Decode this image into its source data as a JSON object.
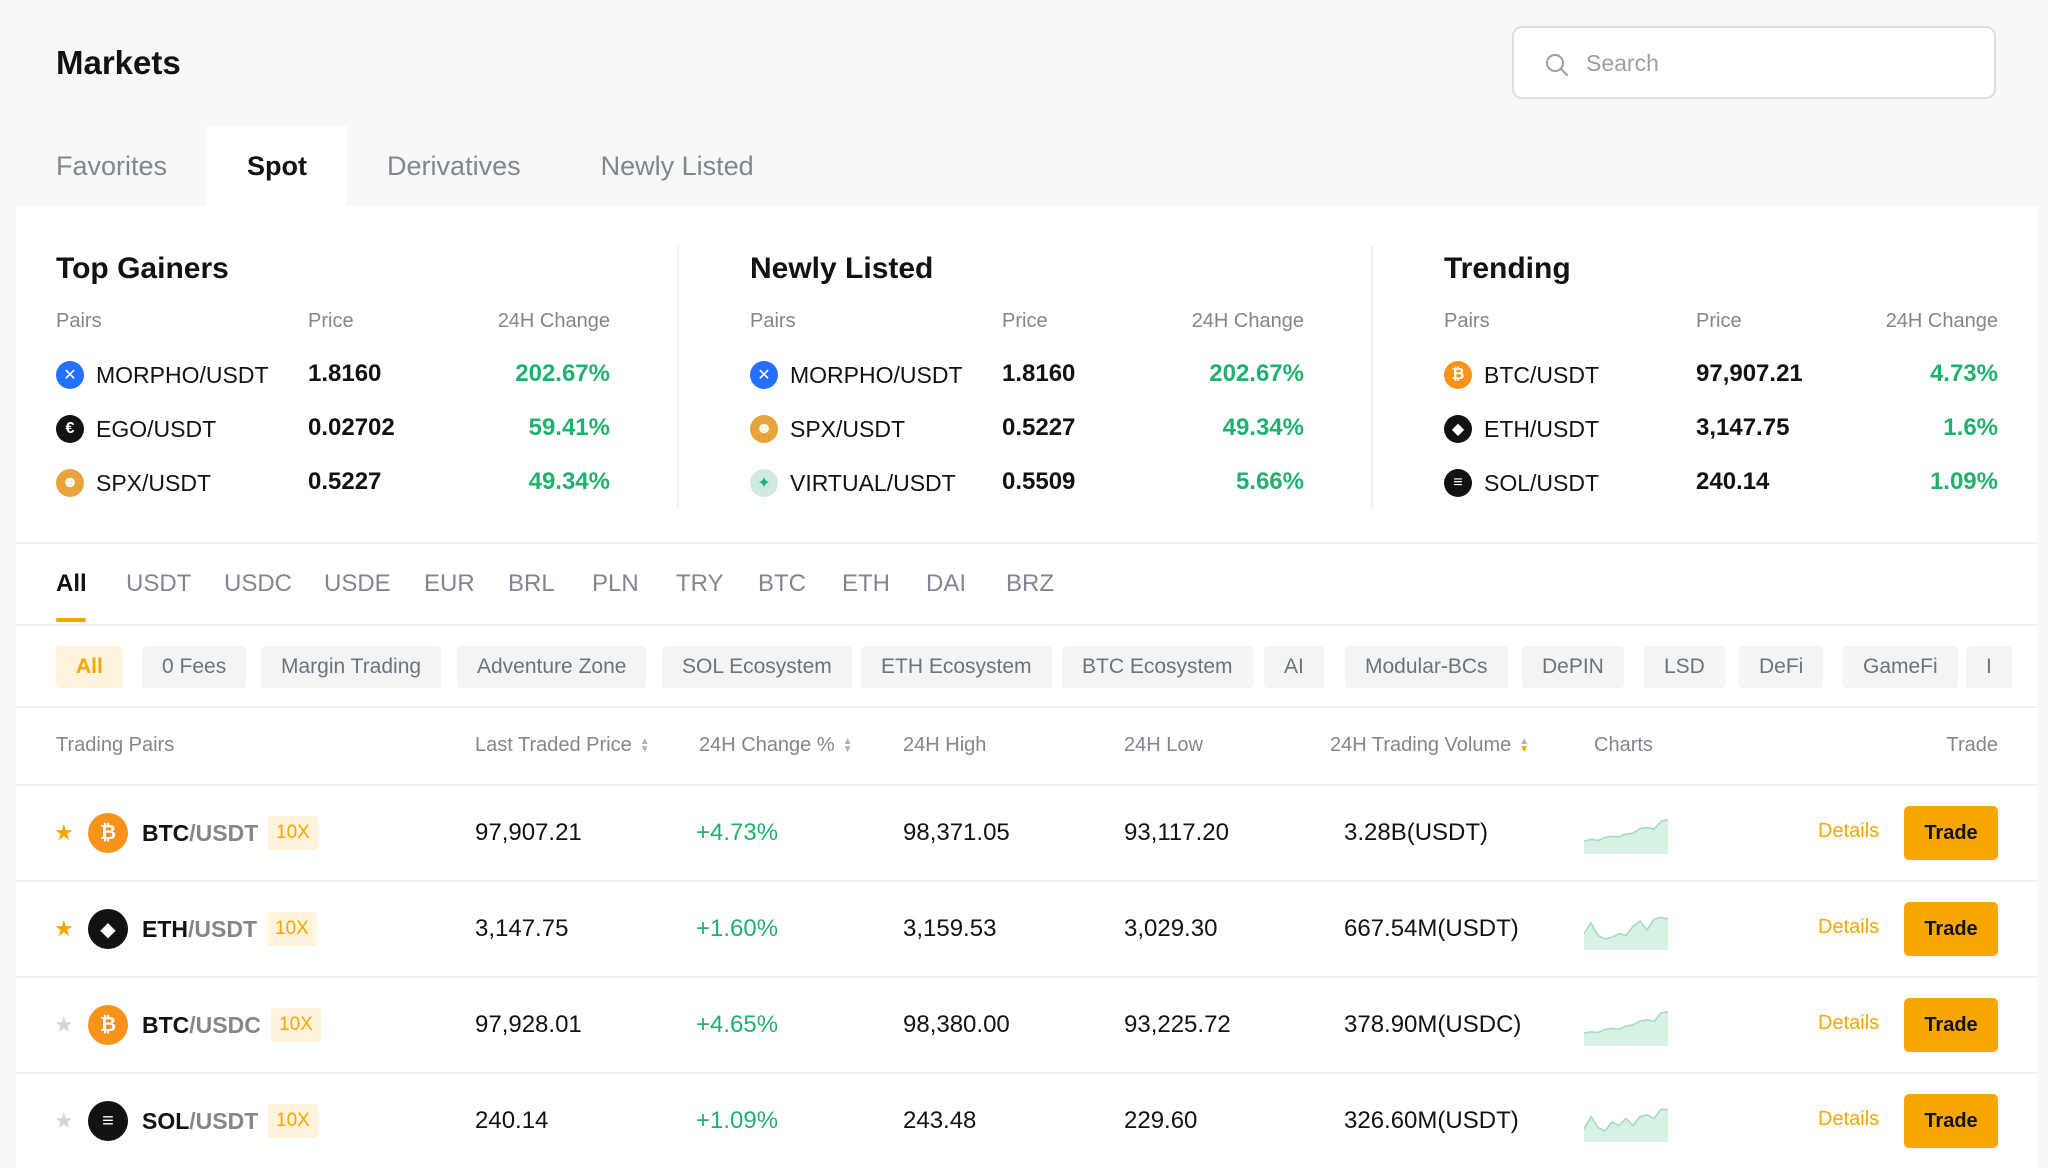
{
  "page_title": "Markets",
  "search": {
    "placeholder": "Search"
  },
  "tabs": [
    {
      "label": "Favorites"
    },
    {
      "label": "Spot",
      "active": true
    },
    {
      "label": "Derivatives"
    },
    {
      "label": "Newly Listed"
    }
  ],
  "cards": [
    {
      "title": "Top Gainers",
      "headers": {
        "pairs": "Pairs",
        "price": "Price",
        "change": "24H Change"
      },
      "rows": [
        {
          "pair": "MORPHO/USDT",
          "price": "1.8160",
          "change": "202.67%",
          "icon": "morpho-icon",
          "color": "#2470ff"
        },
        {
          "pair": "EGO/USDT",
          "price": "0.02702",
          "change": "59.41%",
          "icon": "ego-icon",
          "color": "#121214"
        },
        {
          "pair": "SPX/USDT",
          "price": "0.5227",
          "change": "49.34%",
          "icon": "spx-icon",
          "color": "#e8a33a"
        }
      ]
    },
    {
      "title": "Newly Listed",
      "headers": {
        "pairs": "Pairs",
        "price": "Price",
        "change": "24H Change"
      },
      "rows": [
        {
          "pair": "MORPHO/USDT",
          "price": "1.8160",
          "change": "202.67%",
          "icon": "morpho-icon",
          "color": "#2470ff"
        },
        {
          "pair": "SPX/USDT",
          "price": "0.5227",
          "change": "49.34%",
          "icon": "spx-icon",
          "color": "#e8a33a"
        },
        {
          "pair": "VIRTUAL/USDT",
          "price": "0.5509",
          "change": "5.66%",
          "icon": "virtual-icon",
          "color": "#cfe9de"
        }
      ]
    },
    {
      "title": "Trending",
      "headers": {
        "pairs": "Pairs",
        "price": "Price",
        "change": "24H Change"
      },
      "rows": [
        {
          "pair": "BTC/USDT",
          "price": "97,907.21",
          "change": "4.73%",
          "icon": "btc-icon",
          "color": "#f7931a"
        },
        {
          "pair": "ETH/USDT",
          "price": "3,147.75",
          "change": "1.6%",
          "icon": "eth-icon",
          "color": "#121214"
        },
        {
          "pair": "SOL/USDT",
          "price": "240.14",
          "change": "1.09%",
          "icon": "sol-icon",
          "color": "#121214"
        }
      ]
    }
  ],
  "quote_tabs": [
    "All",
    "USDT",
    "USDC",
    "USDE",
    "EUR",
    "BRL",
    "PLN",
    "TRY",
    "BTC",
    "ETH",
    "DAI",
    "BRZ"
  ],
  "quote_tab_active": "All",
  "chips": [
    "All",
    "0 Fees",
    "Margin Trading",
    "Adventure Zone",
    "SOL Ecosystem",
    "ETH Ecosystem",
    "BTC Ecosystem",
    "AI",
    "Modular-BCs",
    "DePIN",
    "LSD",
    "DeFi",
    "GameFi",
    "I"
  ],
  "table": {
    "headers": {
      "pairs": "Trading Pairs",
      "last_price": "Last Traded Price",
      "change": "24H Change %",
      "high": "24H High",
      "low": "24H Low",
      "volume": "24H Trading Volume",
      "charts": "Charts",
      "trade": "Trade"
    },
    "details_label": "Details",
    "trade_label": "Trade",
    "rows": [
      {
        "base": "BTC",
        "quote": "/USDT",
        "leverage": "10X",
        "favorite": true,
        "icon": "btc-icon",
        "color": "#f7931a",
        "price": "97,907.21",
        "change": "+4.73%",
        "high": "98,371.05",
        "low": "93,117.20",
        "volume": "3.28B(USDT)",
        "spark": [
          3,
          3.5,
          3.2,
          4,
          4.4,
          4.2,
          5,
          5.2,
          6.5,
          6.8,
          6.4,
          8.5,
          9
        ]
      },
      {
        "base": "ETH",
        "quote": "/USDT",
        "leverage": "10X",
        "favorite": true,
        "icon": "eth-icon",
        "color": "#121214",
        "price": "3,147.75",
        "change": "+1.60%",
        "high": "3,159.53",
        "low": "3,029.30",
        "volume": "667.54M(USDT)",
        "spark": [
          4,
          7,
          3.5,
          2.5,
          3,
          4,
          3.5,
          6,
          7.5,
          5,
          8,
          8.5,
          8
        ]
      },
      {
        "base": "BTC",
        "quote": "/USDC",
        "leverage": "10X",
        "favorite": false,
        "icon": "btc-icon",
        "color": "#f7931a",
        "price": "97,928.01",
        "change": "+4.65%",
        "high": "98,380.00",
        "low": "93,225.72",
        "volume": "378.90M(USDC)",
        "spark": [
          3,
          3.4,
          3.2,
          4,
          4.3,
          4.1,
          5,
          5.3,
          6.4,
          6.7,
          6.3,
          8.6,
          9
        ]
      },
      {
        "base": "SOL",
        "quote": "/USDT",
        "leverage": "10X",
        "favorite": false,
        "icon": "sol-icon",
        "color": "#121214",
        "price": "240.14",
        "change": "+1.09%",
        "high": "243.48",
        "low": "229.60",
        "volume": "326.60M(USDT)",
        "spark": [
          3,
          6.5,
          3.5,
          2.5,
          5,
          4,
          6,
          4,
          6.5,
          7,
          6,
          8.5,
          8.5
        ]
      }
    ]
  }
}
